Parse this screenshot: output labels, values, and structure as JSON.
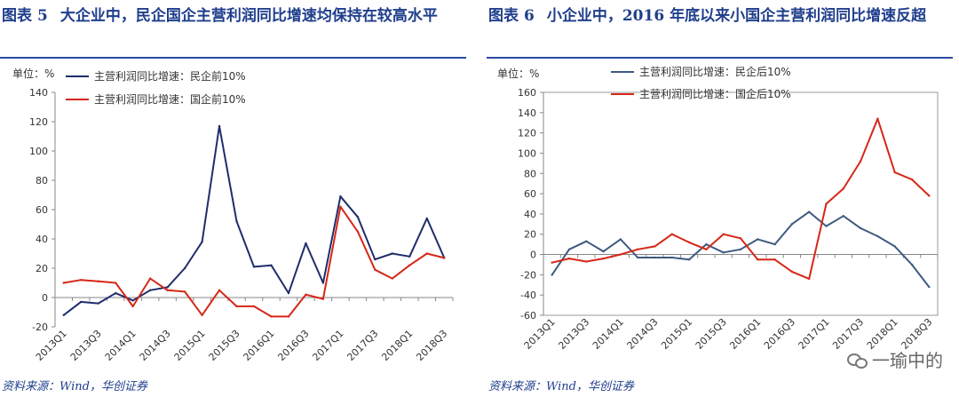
{
  "left": {
    "fig_label": "图表",
    "fig_num": "5",
    "title": "大企业中，民企国企主营利润同比增速均保持在较高水平",
    "unit": "单位：%",
    "source": "资料来源：Wind，华创证券"
  },
  "right": {
    "fig_label": "图表",
    "fig_num": "6",
    "title": "小企业中，2016 年底以来小国企主营利润同比增速反超",
    "unit": "单位：%",
    "source": "资料来源：Wind，华创证券"
  },
  "watermark": {
    "text": "一瑜中的",
    "icon": "wechat-icon"
  },
  "chart_data": [
    {
      "type": "line",
      "title": "",
      "ylim": [
        -20,
        140
      ],
      "yticks": [
        -20,
        0,
        20,
        40,
        60,
        80,
        100,
        120,
        140
      ],
      "x": [
        "2013Q1",
        "2013Q2",
        "2013Q3",
        "2013Q4",
        "2014Q1",
        "2014Q2",
        "2014Q3",
        "2014Q4",
        "2015Q1",
        "2015Q2",
        "2015Q3",
        "2015Q4",
        "2016Q1",
        "2016Q2",
        "2016Q3",
        "2016Q4",
        "2017Q1",
        "2017Q2",
        "2017Q3",
        "2017Q4",
        "2018Q1",
        "2018Q2",
        "2018Q3"
      ],
      "xtick_labels": [
        "2013Q1",
        "2013Q3",
        "2014Q1",
        "2014Q3",
        "2015Q1",
        "2015Q3",
        "2016Q1",
        "2016Q3",
        "2017Q1",
        "2017Q3",
        "2018Q1",
        "2018Q3"
      ],
      "series": [
        {
          "name": "主营利润同比增速：民企前10%",
          "color": "#1f2d6b",
          "values": [
            -12,
            -3,
            -4,
            3,
            -2,
            5,
            7,
            20,
            38,
            117,
            52,
            21,
            22,
            3,
            37,
            10,
            69,
            55,
            26,
            30,
            28,
            54,
            27
          ]
        },
        {
          "name": "主营利润同比增速：国企前10%",
          "color": "#d62718",
          "values": [
            10,
            12,
            11,
            10,
            -6,
            13,
            5,
            4,
            -12,
            5,
            -6,
            -6,
            -13,
            -13,
            2,
            -1,
            62,
            45,
            19,
            13,
            22,
            30,
            27
          ]
        }
      ]
    },
    {
      "type": "line",
      "title": "",
      "ylim": [
        -60,
        160
      ],
      "yticks": [
        -60,
        -40,
        -20,
        0,
        20,
        40,
        60,
        80,
        100,
        120,
        140,
        160
      ],
      "x": [
        "2013Q1",
        "2013Q2",
        "2013Q3",
        "2013Q4",
        "2014Q1",
        "2014Q2",
        "2014Q3",
        "2014Q4",
        "2015Q1",
        "2015Q2",
        "2015Q3",
        "2015Q4",
        "2016Q1",
        "2016Q2",
        "2016Q3",
        "2016Q4",
        "2017Q1",
        "2017Q2",
        "2017Q3",
        "2017Q4",
        "2018Q1",
        "2018Q2",
        "2018Q3"
      ],
      "xtick_labels": [
        "2013Q1",
        "2013Q3",
        "2014Q1",
        "2014Q3",
        "2015Q1",
        "2015Q3",
        "2016Q1",
        "2016Q3",
        "2017Q1",
        "2017Q3",
        "2018Q1",
        "2018Q3"
      ],
      "series": [
        {
          "name": "主营利润同比增速：民企后10%",
          "color": "#3d5a80",
          "values": [
            -20,
            5,
            13,
            3,
            15,
            -3,
            -3,
            -3,
            -5,
            10,
            2,
            5,
            15,
            10,
            30,
            42,
            28,
            38,
            26,
            18,
            8,
            -10,
            -32
          ]
        },
        {
          "name": "主营利润同比增速：国企后10%",
          "color": "#d62718",
          "values": [
            -8,
            -4,
            -7,
            -4,
            0,
            5,
            8,
            20,
            12,
            5,
            20,
            16,
            -5,
            -5,
            -17,
            -24,
            50,
            65,
            92,
            134,
            81,
            74,
            58
          ]
        }
      ]
    }
  ]
}
